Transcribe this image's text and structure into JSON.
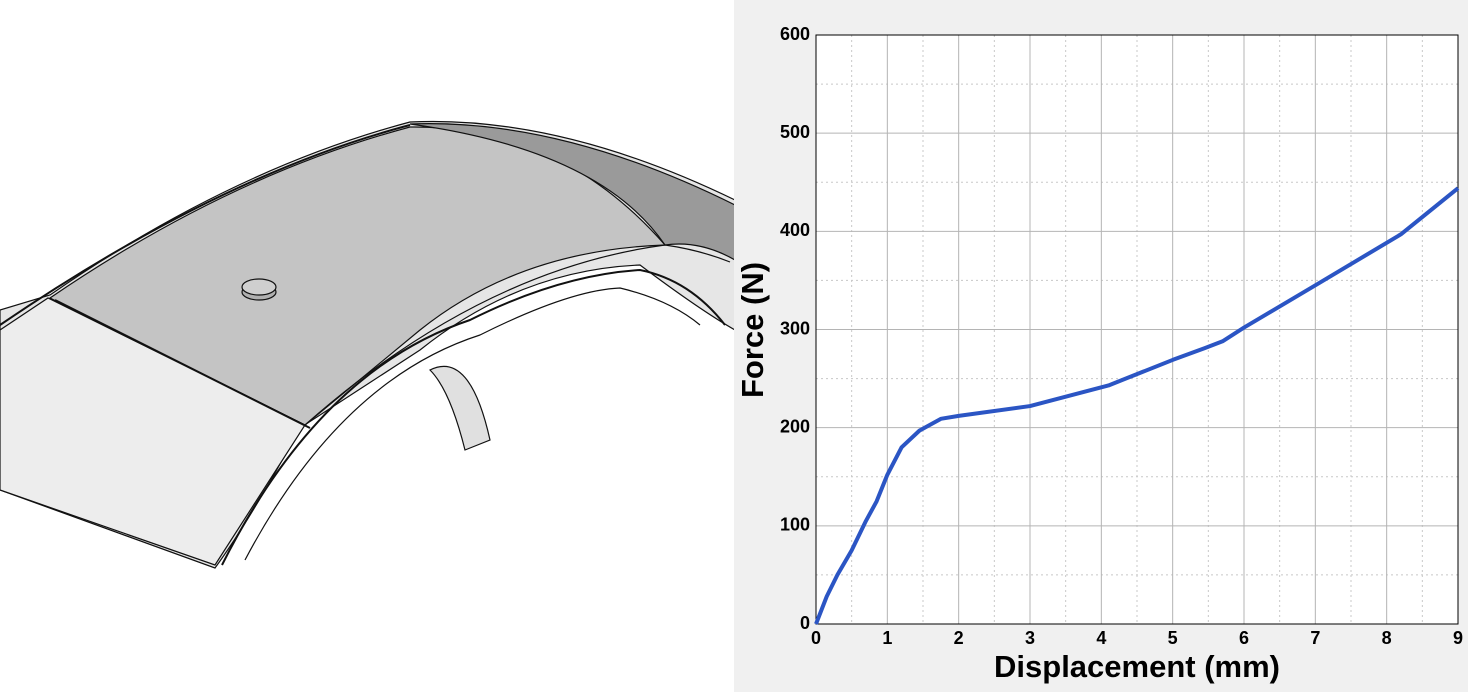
{
  "chart_data": {
    "type": "line",
    "x_label": "Displacement (mm)",
    "y_label": "Force (N)",
    "x": [
      0,
      0.15,
      0.3,
      0.5,
      0.7,
      0.85,
      1.0,
      1.2,
      1.45,
      1.75,
      2.0,
      3.0,
      4.1,
      5.0,
      5.45,
      5.7,
      6.0,
      7.0,
      8.2,
      9.0
    ],
    "series": [
      {
        "color": "#2b55c4",
        "values": [
          0,
          28,
          50,
          75,
          105,
          125,
          152,
          180,
          197,
          209,
          212,
          222,
          243,
          269,
          281,
          288,
          302,
          345,
          397,
          444
        ]
      }
    ],
    "xlim": [
      0,
      9
    ],
    "xticks": [
      0,
      1,
      2,
      3,
      4,
      5,
      6,
      7,
      8,
      9
    ],
    "ylim": [
      0,
      600
    ],
    "yticks": [
      0,
      100,
      200,
      300,
      400,
      500,
      600
    ],
    "grid": true,
    "minor_grid": true
  }
}
